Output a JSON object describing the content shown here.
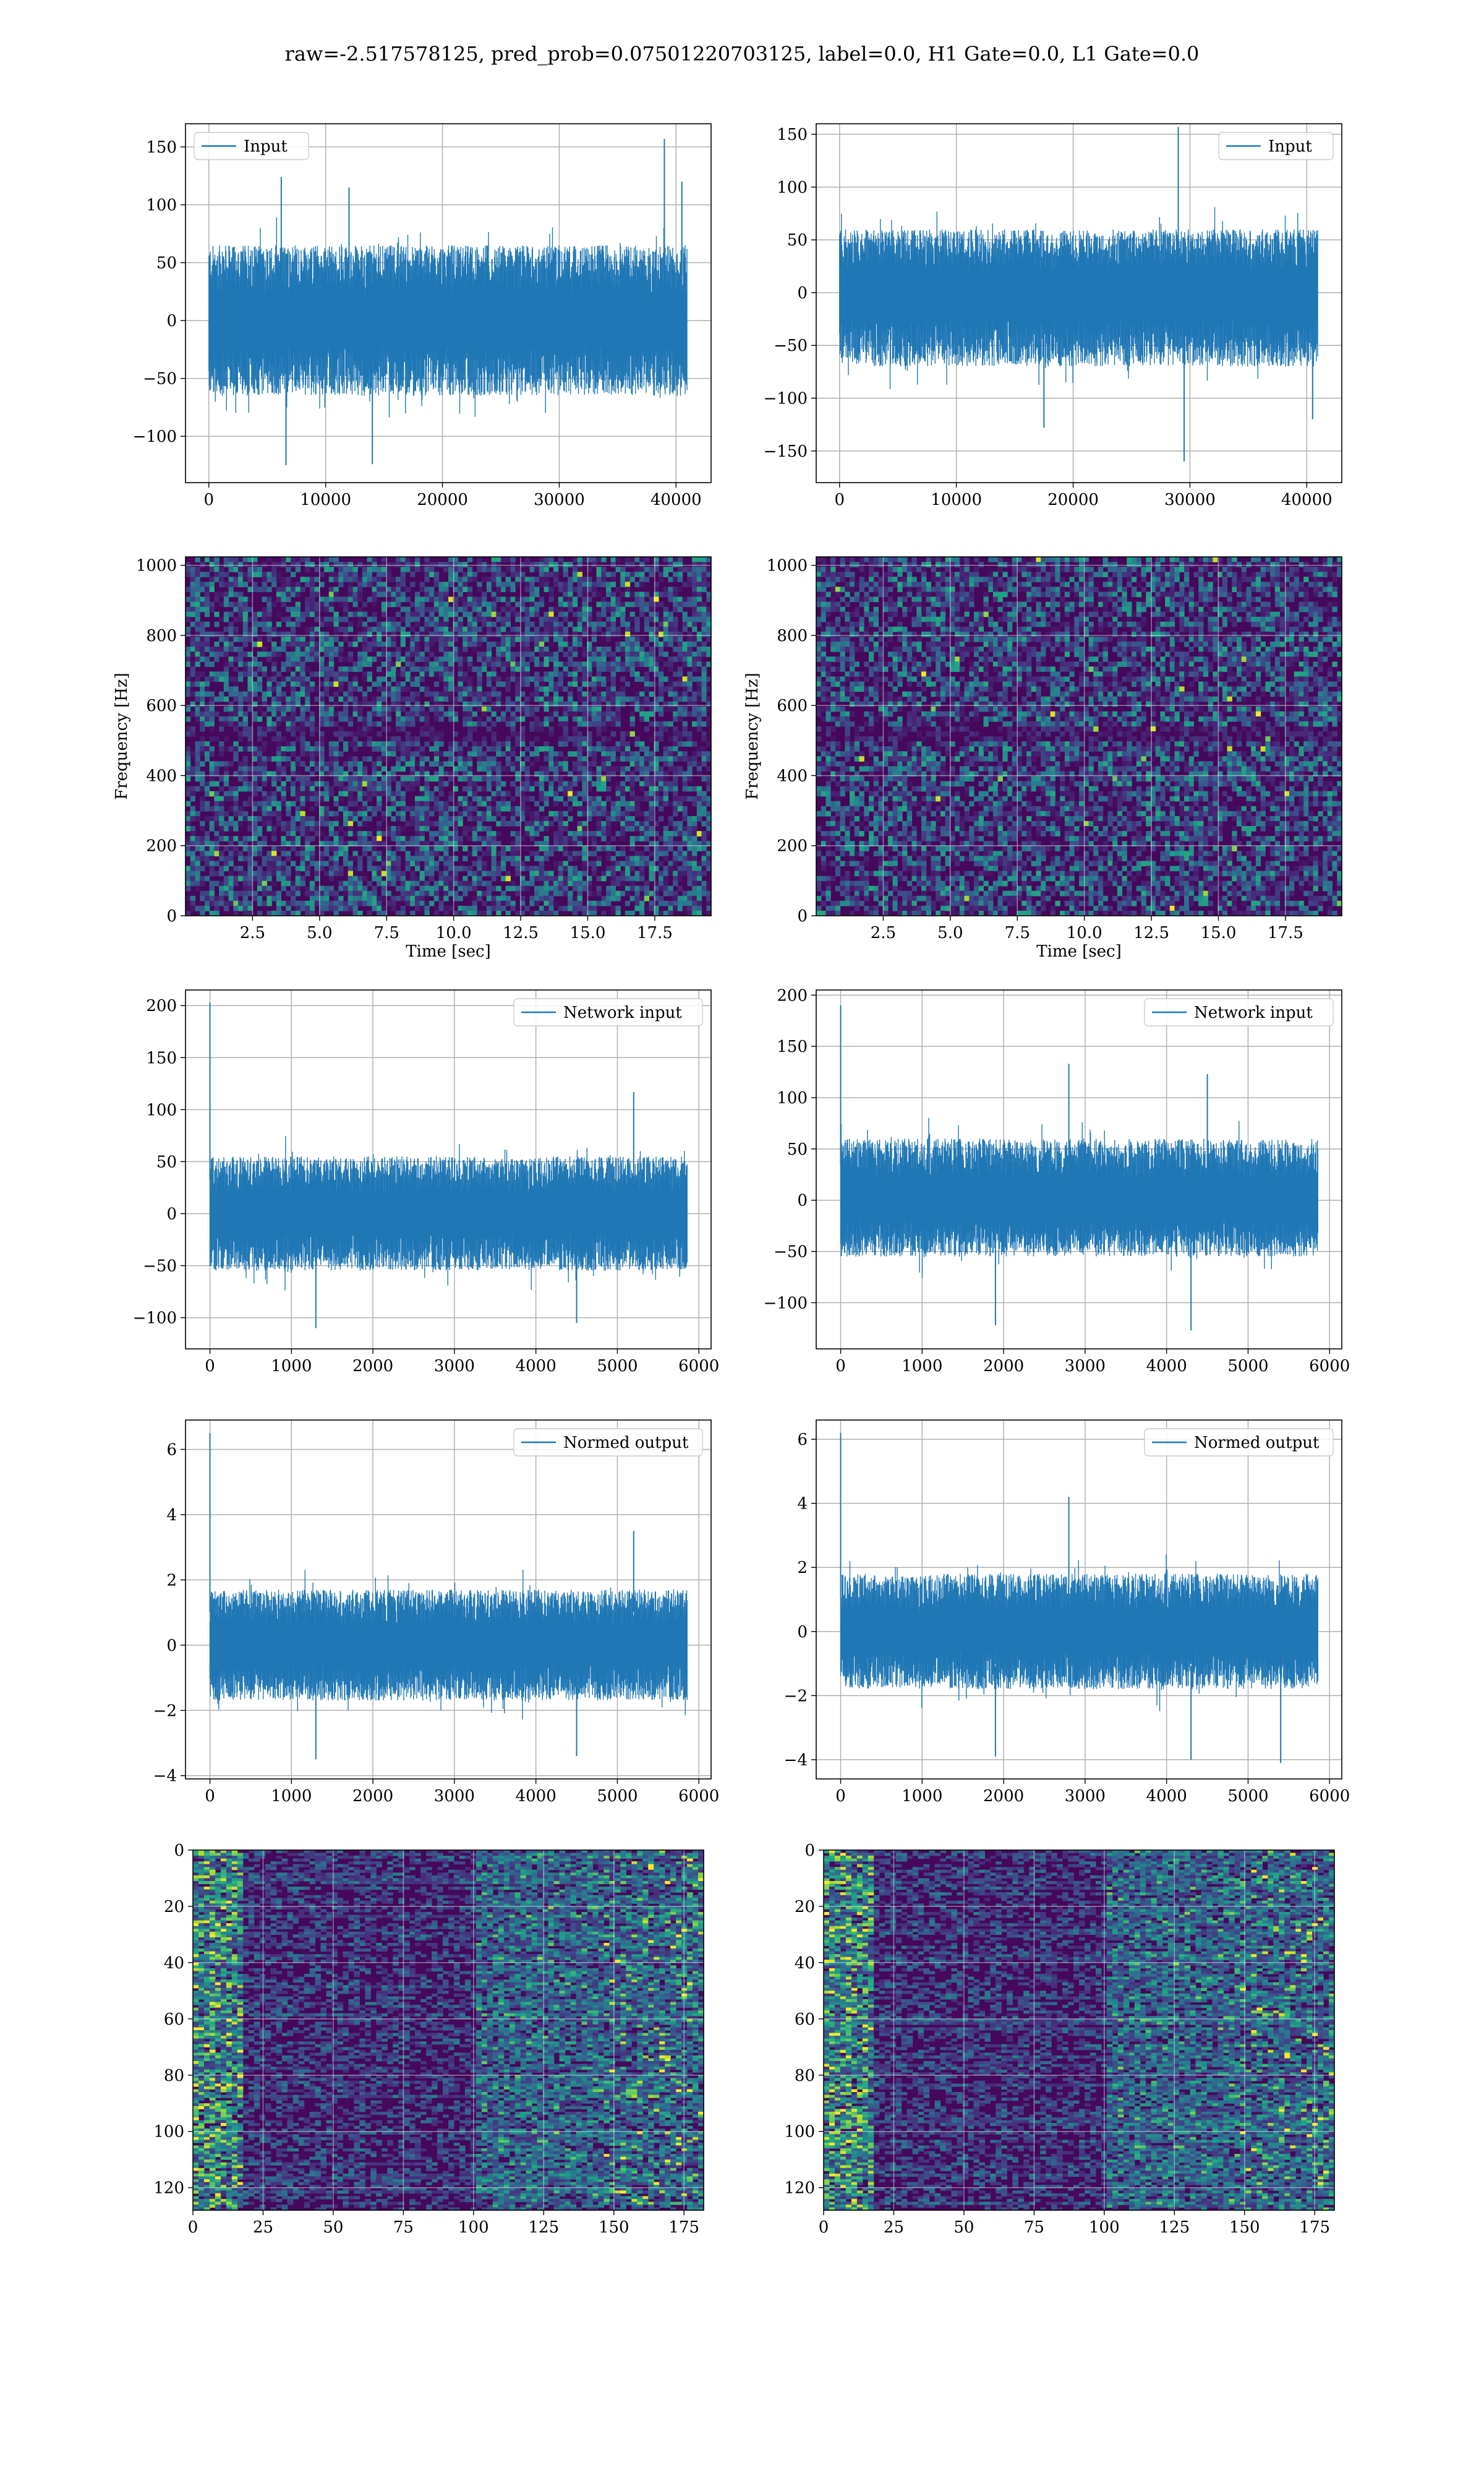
{
  "title": "raw=-2.517578125, pred_prob=0.07501220703125, label=0.0, H1 Gate=0.0, L1 Gate=0.0",
  "colors": {
    "line": "#1f77b4",
    "grid": "#b0b0b0",
    "viridis_low": "#440154",
    "viridis_high": "#fde725"
  },
  "chart_data": [
    {
      "type": "line",
      "name": "Input",
      "legend_loc": "upper left",
      "x_ticks": [
        0,
        10000,
        20000,
        30000,
        40000
      ],
      "y_ticks": [
        -100,
        -50,
        0,
        50,
        100,
        150
      ],
      "xlim": [
        -2000,
        43000
      ],
      "ylim": [
        -140,
        170
      ],
      "n_samples": 40960,
      "envelope": {
        "lower": -65,
        "upper": 65
      },
      "peaks": [
        {
          "x": 6200,
          "y": 124
        },
        {
          "x": 12000,
          "y": 115
        },
        {
          "x": 39000,
          "y": 157
        },
        {
          "x": 40500,
          "y": 120
        },
        {
          "x": 6600,
          "y": -125
        },
        {
          "x": 14000,
          "y": -124
        }
      ],
      "grid": true
    },
    {
      "type": "line",
      "name": "Input",
      "legend_loc": "upper right",
      "x_ticks": [
        0,
        10000,
        20000,
        30000,
        40000
      ],
      "y_ticks": [
        -150,
        -100,
        -50,
        0,
        50,
        100,
        150
      ],
      "xlim": [
        -2000,
        43000
      ],
      "ylim": [
        -180,
        160
      ],
      "n_samples": 40960,
      "envelope": {
        "lower": -70,
        "upper": 60
      },
      "peaks": [
        {
          "x": 29000,
          "y": 157
        },
        {
          "x": 17500,
          "y": -128
        },
        {
          "x": 29500,
          "y": -160
        },
        {
          "x": 40500,
          "y": -120
        }
      ],
      "grid": true
    },
    {
      "type": "heatmap",
      "colormap": "viridis",
      "xlabel": "Time [sec]",
      "ylabel": "Frequency [Hz]",
      "x_ticks": [
        2.5,
        5.0,
        7.5,
        10.0,
        12.5,
        15.0,
        17.5
      ],
      "y_ticks": [
        0,
        200,
        400,
        600,
        800,
        1000
      ],
      "xlim": [
        0,
        19.6
      ],
      "ylim": [
        0,
        1024
      ],
      "grid": true
    },
    {
      "type": "heatmap",
      "colormap": "viridis",
      "xlabel": "Time [sec]",
      "ylabel": "Frequency [Hz]",
      "x_ticks": [
        2.5,
        5.0,
        7.5,
        10.0,
        12.5,
        15.0,
        17.5
      ],
      "y_ticks": [
        0,
        200,
        400,
        600,
        800,
        1000
      ],
      "xlim": [
        0,
        19.6
      ],
      "ylim": [
        0,
        1024
      ],
      "grid": true
    },
    {
      "type": "line",
      "name": "Network input",
      "legend_loc": "upper right",
      "x_ticks": [
        0,
        1000,
        2000,
        3000,
        4000,
        5000,
        6000
      ],
      "y_ticks": [
        -100,
        -50,
        0,
        50,
        100,
        150,
        200
      ],
      "xlim": [
        -300,
        6150
      ],
      "ylim": [
        -130,
        215
      ],
      "n_samples": 5860,
      "envelope": {
        "lower": -55,
        "upper": 55
      },
      "peaks": [
        {
          "x": 0,
          "y": 203
        },
        {
          "x": 5200,
          "y": 117
        },
        {
          "x": 1300,
          "y": -110
        },
        {
          "x": 4500,
          "y": -105
        }
      ],
      "grid": true
    },
    {
      "type": "line",
      "name": "Network input",
      "legend_loc": "upper right",
      "x_ticks": [
        0,
        1000,
        2000,
        3000,
        4000,
        5000,
        6000
      ],
      "y_ticks": [
        -100,
        -50,
        0,
        50,
        100,
        150,
        200
      ],
      "xlim": [
        -300,
        6150
      ],
      "ylim": [
        -145,
        205
      ],
      "n_samples": 5860,
      "envelope": {
        "lower": -55,
        "upper": 60
      },
      "peaks": [
        {
          "x": 0,
          "y": 190
        },
        {
          "x": 2800,
          "y": 133
        },
        {
          "x": 4500,
          "y": 123
        },
        {
          "x": 1900,
          "y": -122
        },
        {
          "x": 4300,
          "y": -127
        }
      ],
      "grid": true
    },
    {
      "type": "line",
      "name": "Normed output",
      "legend_loc": "upper right",
      "x_ticks": [
        0,
        1000,
        2000,
        3000,
        4000,
        5000,
        6000
      ],
      "y_ticks": [
        -4,
        -2,
        0,
        2,
        4,
        6
      ],
      "xlim": [
        -300,
        6150
      ],
      "ylim": [
        -4.1,
        6.9
      ],
      "n_samples": 5860,
      "envelope": {
        "lower": -1.7,
        "upper": 1.7
      },
      "peaks": [
        {
          "x": 0,
          "y": 6.5
        },
        {
          "x": 5200,
          "y": 3.5
        },
        {
          "x": 1300,
          "y": -3.5
        },
        {
          "x": 4500,
          "y": -3.4
        }
      ],
      "grid": true
    },
    {
      "type": "line",
      "name": "Normed output",
      "legend_loc": "upper right",
      "x_ticks": [
        0,
        1000,
        2000,
        3000,
        4000,
        5000,
        6000
      ],
      "y_ticks": [
        -4,
        -2,
        0,
        2,
        4,
        6
      ],
      "xlim": [
        -300,
        6150
      ],
      "ylim": [
        -4.6,
        6.6
      ],
      "n_samples": 5860,
      "envelope": {
        "lower": -1.8,
        "upper": 1.8
      },
      "peaks": [
        {
          "x": 0,
          "y": 6.2
        },
        {
          "x": 2800,
          "y": 4.2
        },
        {
          "x": 1900,
          "y": -3.9
        },
        {
          "x": 4300,
          "y": -4.0
        },
        {
          "x": 5400,
          "y": -4.1
        }
      ],
      "grid": true
    },
    {
      "type": "heatmap",
      "colormap": "viridis",
      "x_ticks": [
        0,
        25,
        50,
        75,
        100,
        125,
        150,
        175
      ],
      "y_ticks": [
        0,
        20,
        40,
        60,
        80,
        100,
        120
      ],
      "xlim": [
        0,
        182
      ],
      "ylim": [
        128,
        0
      ],
      "y_inverted": true,
      "grid": true
    },
    {
      "type": "heatmap",
      "colormap": "viridis",
      "x_ticks": [
        0,
        25,
        50,
        75,
        100,
        125,
        150,
        175
      ],
      "y_ticks": [
        0,
        20,
        40,
        60,
        80,
        100,
        120
      ],
      "xlim": [
        0,
        182
      ],
      "ylim": [
        128,
        0
      ],
      "y_inverted": true,
      "grid": true
    }
  ]
}
